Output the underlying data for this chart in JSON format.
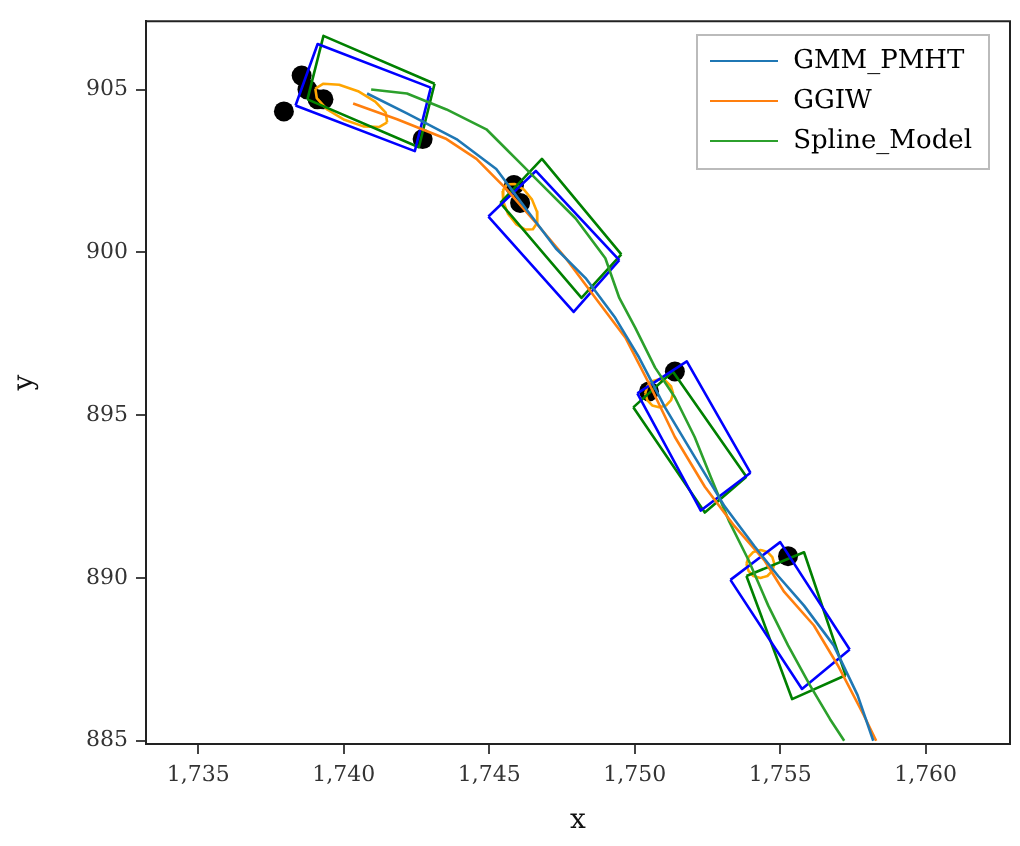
{
  "chart_data": {
    "type": "line",
    "xlabel": "x",
    "ylabel": "y",
    "xlim": [
      1733.2,
      1762.9
    ],
    "ylim": [
      884.9,
      907.1
    ],
    "xticks": [
      {
        "value": 1735,
        "label": "1,735"
      },
      {
        "value": 1740,
        "label": "1,740"
      },
      {
        "value": 1745,
        "label": "1,745"
      },
      {
        "value": 1750,
        "label": "1,750"
      },
      {
        "value": 1755,
        "label": "1,755"
      },
      {
        "value": 1760,
        "label": "1,760"
      }
    ],
    "yticks": [
      885,
      890,
      895,
      900,
      905
    ],
    "grid": false,
    "legend": "top right",
    "marker": "none",
    "line_style": "solid",
    "series": [
      {
        "name": "GMM_PMHT",
        "color": "#1f77b4",
        "x": [
          1740.8,
          1742.17,
          1743.87,
          1745.24,
          1746.26,
          1747.29,
          1748.31,
          1749.33,
          1750.15,
          1751.04,
          1752.06,
          1753.09,
          1754.11,
          1754.93,
          1755.82,
          1756.84,
          1757.66,
          1758.2
        ],
        "values": [
          904.88,
          904.27,
          903.48,
          902.56,
          901.34,
          900.12,
          899.21,
          897.99,
          896.77,
          895.24,
          893.72,
          892.2,
          890.98,
          890.06,
          889.15,
          887.93,
          886.4,
          885.0
        ]
      },
      {
        "name": "GGIW",
        "color": "#ff7f0e",
        "x": [
          1740.32,
          1741.83,
          1743.53,
          1744.56,
          1745.58,
          1746.6,
          1747.63,
          1748.65,
          1749.68,
          1750.56,
          1751.38,
          1752.41,
          1753.43,
          1754.45,
          1755.14,
          1756.16,
          1756.98,
          1757.87,
          1758.3
        ],
        "values": [
          904.57,
          904.09,
          903.48,
          902.87,
          901.95,
          900.91,
          899.82,
          898.6,
          897.38,
          895.85,
          894.33,
          892.8,
          891.59,
          890.55,
          889.57,
          888.54,
          887.32,
          885.79,
          885.0
        ]
      },
      {
        "name": "Spline_Model",
        "color": "#2ca02c",
        "x": [
          1740.94,
          1742.17,
          1743.53,
          1744.9,
          1745.92,
          1746.95,
          1747.97,
          1748.99,
          1749.47,
          1750.02,
          1750.7,
          1751.38,
          1752.06,
          1752.61,
          1753.23,
          1753.91,
          1754.59,
          1755.27,
          1756.02,
          1756.71,
          1757.2
        ],
        "values": [
          905.0,
          904.88,
          904.39,
          903.78,
          902.87,
          901.95,
          901.04,
          899.82,
          898.6,
          897.68,
          896.46,
          895.55,
          894.33,
          893.11,
          891.77,
          890.55,
          889.15,
          887.93,
          886.71,
          885.67,
          885.0
        ]
      },
      {
        "color": "#0000ff",
        "x": [
          1738.34,
          1739.1,
          1742.99
        ],
        "values": [
          904.51,
          906.4,
          905.06
        ]
      },
      {
        "color": "#0000ff",
        "x": [
          1738.34,
          1742.44,
          1742.99
        ],
        "values": [
          904.51,
          903.11,
          905.06
        ]
      },
      {
        "color": "#0000ff",
        "x": [
          1744.97,
          1746.6,
          1749.47
        ],
        "values": [
          901.1,
          902.5,
          899.76
        ]
      },
      {
        "color": "#0000ff",
        "x": [
          1744.97,
          1747.9,
          1749.47
        ],
        "values": [
          901.1,
          898.17,
          899.76
        ]
      },
      {
        "color": "#0000ff",
        "x": [
          1750.09,
          1751.79,
          1753.98
        ],
        "values": [
          895.67,
          896.65,
          893.23
        ]
      },
      {
        "color": "#0000ff",
        "x": [
          1750.09,
          1752.27,
          1753.98
        ],
        "values": [
          895.67,
          892.07,
          893.23
        ]
      },
      {
        "color": "#0000ff",
        "x": [
          1753.29,
          1755.0,
          1757.39
        ],
        "values": [
          889.94,
          891.1,
          887.8
        ]
      },
      {
        "color": "#0000ff",
        "x": [
          1753.29,
          1755.75,
          1757.39
        ],
        "values": [
          889.94,
          886.59,
          887.8
        ]
      },
      {
        "color": "#008000",
        "x": [
          1738.75,
          1739.3,
          1743.12
        ],
        "values": [
          904.7,
          906.65,
          905.18
        ]
      },
      {
        "color": "#008000",
        "x": [
          1738.75,
          1742.58,
          1743.12
        ],
        "values": [
          904.7,
          903.23,
          905.18
        ]
      },
      {
        "color": "#008000",
        "x": [
          1745.38,
          1746.81,
          1749.54
        ],
        "values": [
          901.52,
          902.87,
          899.94
        ]
      },
      {
        "color": "#008000",
        "x": [
          1745.38,
          1748.17,
          1749.54
        ],
        "values": [
          901.52,
          898.6,
          899.94
        ]
      },
      {
        "color": "#008000",
        "x": [
          1749.95,
          1751.31,
          1753.84
        ],
        "values": [
          895.24,
          896.34,
          893.11
        ]
      },
      {
        "color": "#008000",
        "x": [
          1749.95,
          1752.41,
          1753.84
        ],
        "values": [
          895.24,
          892.01,
          893.11
        ]
      },
      {
        "color": "#008000",
        "x": [
          1753.84,
          1755.82,
          1757.25
        ],
        "values": [
          890.06,
          890.79,
          887.01
        ]
      },
      {
        "color": "#008000",
        "x": [
          1753.84,
          1755.41,
          1757.25
        ],
        "values": [
          890.06,
          886.28,
          887.01
        ]
      },
      {
        "color": "#ffa500",
        "x": [
          1739.02,
          1739.3,
          1739.84,
          1740.49,
          1741.08,
          1741.44,
          1741.49
        ],
        "values": [
          905.03,
          905.18,
          905.15,
          904.95,
          904.63,
          904.29,
          903.99
        ]
      },
      {
        "color": "#ffa500",
        "x": [
          1739.02,
          1739.07,
          1739.44,
          1740.02,
          1740.67,
          1741.21,
          1741.49
        ],
        "values": [
          905.03,
          904.74,
          904.38,
          904.07,
          903.87,
          903.85,
          903.99
        ]
      },
      {
        "color": "#ffa500",
        "x": [
          1745.46,
          1745.61,
          1745.88,
          1746.19,
          1746.47,
          1746.64,
          1746.65
        ],
        "values": [
          901.89,
          902.09,
          902.1,
          901.93,
          901.62,
          901.25,
          900.91
        ]
      },
      {
        "color": "#ffa500",
        "x": [
          1745.46,
          1745.48,
          1745.64,
          1745.92,
          1746.24,
          1746.5,
          1746.65
        ],
        "values": [
          901.89,
          901.56,
          901.19,
          900.87,
          900.7,
          900.71,
          900.91
        ]
      },
      {
        "color": "#ffa500",
        "x": [
          1750.36,
          1750.43,
          1750.6,
          1750.84,
          1751.08,
          1751.25,
          1751.32
        ],
        "values": [
          895.67,
          895.88,
          896.04,
          896.1,
          896.04,
          895.88,
          895.67
        ]
      },
      {
        "color": "#ffa500",
        "x": [
          1750.36,
          1750.43,
          1750.6,
          1750.84,
          1751.08,
          1751.25,
          1751.32
        ],
        "values": [
          895.67,
          895.46,
          895.3,
          895.24,
          895.3,
          895.46,
          895.67
        ]
      },
      {
        "color": "#ffa500",
        "x": [
          1753.84,
          1753.91,
          1754.08,
          1754.32,
          1754.56,
          1754.73,
          1754.8
        ],
        "values": [
          890.43,
          890.64,
          890.8,
          890.86,
          890.8,
          890.64,
          890.43
        ]
      },
      {
        "color": "#ffa500",
        "x": [
          1753.84,
          1753.91,
          1754.08,
          1754.32,
          1754.56,
          1754.73,
          1754.8
        ],
        "values": [
          890.43,
          890.22,
          890.06,
          890.0,
          890.06,
          890.22,
          890.43
        ]
      },
      {
        "type": "scatter",
        "marker": "circle",
        "color": "#000000",
        "x": [
          1737.94,
          1738.55,
          1738.75,
          1739.1,
          1739.3,
          1742.71,
          1745.85,
          1746.06,
          1750.49,
          1751.38,
          1755.27
        ],
        "values": [
          904.33,
          905.43,
          905.0,
          904.7,
          904.7,
          903.48,
          902.07,
          901.52,
          895.73,
          896.34,
          890.67
        ]
      }
    ]
  }
}
